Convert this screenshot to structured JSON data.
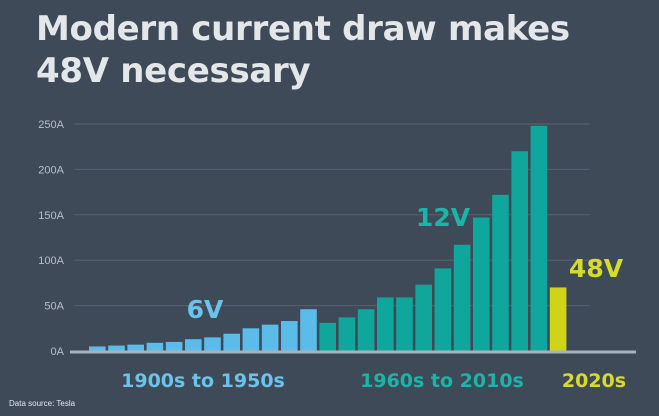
{
  "header": {
    "title_line1": "Modern current draw makes",
    "title_line2": "48V necessary"
  },
  "footer": {
    "source": "Data source: Tesla"
  },
  "colors": {
    "background": "#3f4a59",
    "six_volt": "#5bbce9",
    "twelve_volt": "#0fa79c",
    "forty_eight_volt": "#cfd416",
    "axis": "#aab3bd",
    "gridline": "#566270",
    "six_volt_text": "#6cc3ea",
    "twelve_volt_text": "#19b6a8",
    "forty_eight_volt_text": "#d6dc2b",
    "tick_text": "#b7bfc7"
  },
  "chart_data": {
    "type": "bar",
    "title": "Modern current draw makes 48V necessary",
    "ylim": [
      0,
      250
    ],
    "y_ticks": [
      "0A",
      "50A",
      "100A",
      "150A",
      "200A",
      "250A"
    ],
    "y_tick_values": [
      0,
      50,
      100,
      150,
      200,
      250
    ],
    "grid": true,
    "groups": [
      {
        "name": "6V",
        "era": "1900s to 1950s",
        "color": "#5bbce9",
        "values": [
          5,
          6,
          7,
          9,
          10,
          13,
          15,
          19,
          25,
          29,
          33,
          46
        ]
      },
      {
        "name": "12V",
        "era": "1960s to 2010s",
        "color": "#0fa79c",
        "values": [
          31,
          37,
          46,
          59,
          59,
          73,
          91,
          117,
          147,
          172,
          220,
          248
        ]
      },
      {
        "name": "48V",
        "era": "2020s",
        "color": "#cfd416",
        "values": [
          70
        ]
      }
    ]
  }
}
